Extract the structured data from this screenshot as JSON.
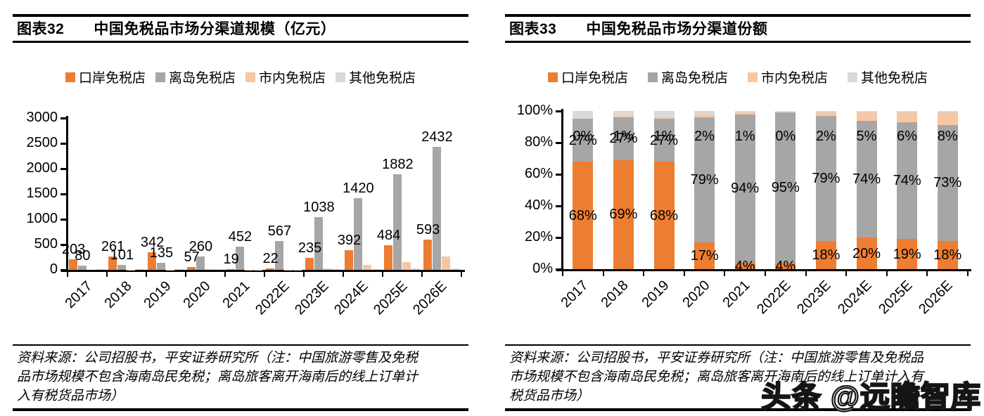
{
  "watermark": "头条 @远瞻智库",
  "colors": {
    "orange": "#ED7D31",
    "gray": "#A6A6A6",
    "light_orange": "#F7C7A3",
    "light_gray": "#D9D9D9",
    "axis": "#000000"
  },
  "panels": [
    {
      "tag": "图表32",
      "title": "中国免税品市场分渠道规模（亿元）",
      "legend": [
        "口岸免税店",
        "离岛免税店",
        "市内免税店",
        "其他免税店"
      ],
      "source": [
        "资料来源：公司招股书，平安证券研究所（注：中国旅游零售及免税",
        "品市场规模不包含海南岛民免税；离岛旅客离开海南后的线上订单计",
        "入有税货品市场）"
      ]
    },
    {
      "tag": "图表33",
      "title": "中国免税品市场分渠道份额",
      "legend": [
        "口岸免税店",
        "离岛免税店",
        "市内免税店",
        "其他免税店"
      ],
      "source": [
        "资料来源：公司招股书，平安证券研究所（注：中国旅游零售及免税品",
        "市场规模不包含海南岛民免税；离岛旅客离开海南后的线上订单计入有",
        "税货品市场）"
      ]
    }
  ],
  "chart_data": [
    {
      "type": "bar",
      "title": "中国免税品市场分渠道规模（亿元）",
      "categories": [
        "2017",
        "2018",
        "2019",
        "2020",
        "2021",
        "2022E",
        "2023E",
        "2024E",
        "2025E",
        "2026E"
      ],
      "ylim": [
        0,
        3000
      ],
      "yticks": [
        0,
        500,
        1000,
        1500,
        2000,
        2500,
        3000
      ],
      "grid": false,
      "legend_position": "top",
      "series": [
        {
          "name": "口岸免税店",
          "color": "orange",
          "labeled": true,
          "values": [
            203,
            261,
            342,
            57,
            19,
            22,
            235,
            392,
            484,
            593
          ]
        },
        {
          "name": "离岛免税店",
          "color": "gray",
          "labeled": true,
          "values": [
            80,
            101,
            135,
            260,
            452,
            567,
            1038,
            1420,
            1882,
            2432
          ]
        },
        {
          "name": "市内免税店",
          "color": "light_orange",
          "labeled": false,
          "values": [
            1,
            4,
            5,
            7,
            5,
            3,
            26,
            98,
            153,
            264
          ]
        },
        {
          "name": "其他免税店",
          "color": "light_gray",
          "labeled": false,
          "values": [
            15,
            11,
            20,
            7,
            5,
            6,
            13,
            20,
            25,
            33
          ]
        }
      ]
    },
    {
      "type": "stacked-bar",
      "title": "中国免税品市场分渠道份额",
      "unit": "percent",
      "categories": [
        "2017",
        "2018",
        "2019",
        "2020",
        "2021",
        "2022E",
        "2023E",
        "2024E",
        "2025E",
        "2026E"
      ],
      "ylim": [
        0,
        100
      ],
      "yticks": [
        0,
        20,
        40,
        60,
        80,
        100
      ],
      "grid": false,
      "legend_position": "top",
      "series": [
        {
          "name": "口岸免税店",
          "color": "orange",
          "labeled": true,
          "values": [
            68,
            69,
            68,
            17,
            4,
            4,
            18,
            20,
            19,
            18
          ]
        },
        {
          "name": "离岛免税店",
          "color": "gray",
          "labeled": true,
          "values": [
            27,
            27,
            27,
            79,
            94,
            95,
            79,
            74,
            74,
            73
          ]
        },
        {
          "name": "市内免税店",
          "color": "light_orange",
          "labeled": true,
          "label_pos": "top",
          "values": [
            0,
            1,
            1,
            2,
            1,
            0,
            2,
            5,
            6,
            8
          ]
        },
        {
          "name": "其他免税店",
          "color": "light_gray",
          "labeled": false,
          "values": [
            5,
            3,
            4,
            2,
            1,
            1,
            1,
            1,
            1,
            1
          ]
        }
      ]
    }
  ]
}
